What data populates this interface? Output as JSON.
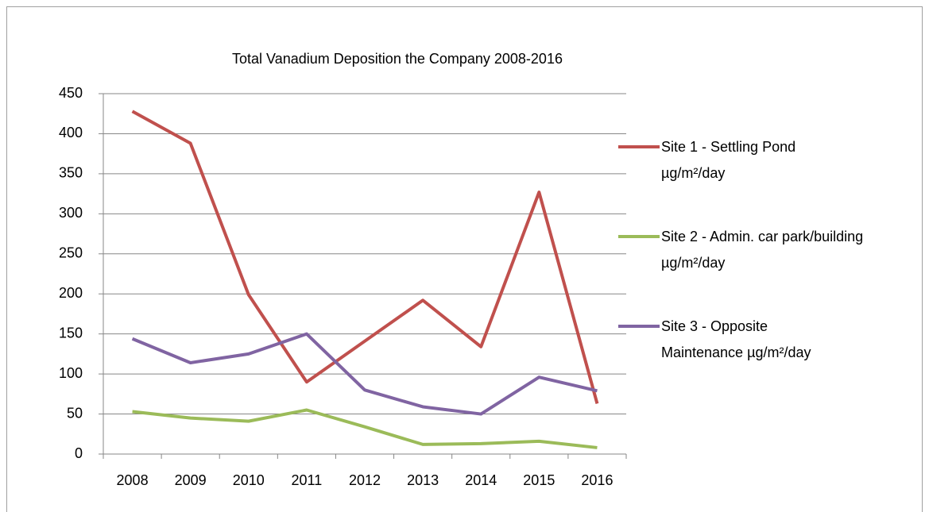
{
  "chart_data": {
    "type": "line",
    "title": "Total Vanadium Deposition the Company 2008-2016",
    "categories": [
      "2008",
      "2009",
      "2010",
      "2011",
      "2012",
      "2013",
      "2014",
      "2015",
      "2016"
    ],
    "series": [
      {
        "name": "Site 1 - Settling Pond µg/m²/day",
        "color": "#c0504d",
        "values": [
          428,
          388,
          199,
          90,
          141,
          192,
          134,
          327,
          63
        ]
      },
      {
        "name": "Site 2 - Admin. car park/building µg/m²/day",
        "color": "#9bbb59",
        "values": [
          53,
          45,
          41,
          55,
          34,
          12,
          13,
          16,
          8
        ]
      },
      {
        "name": "Site 3 - Opposite Maintenance µg/m²/day",
        "color": "#8064a2",
        "values": [
          144,
          114,
          125,
          150,
          80,
          59,
          50,
          96,
          79
        ]
      }
    ],
    "ylim": [
      0,
      450
    ],
    "yticks": [
      0,
      50,
      100,
      150,
      200,
      250,
      300,
      350,
      400,
      450
    ],
    "grid": true,
    "legend": "right"
  }
}
